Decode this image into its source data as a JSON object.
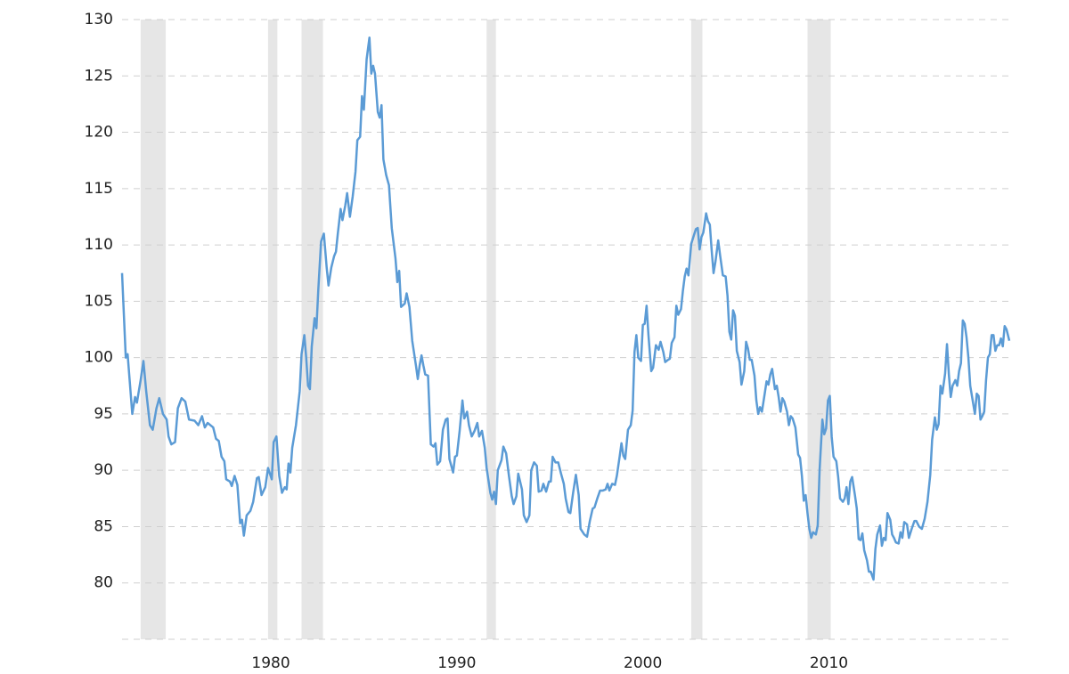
{
  "chart_data": {
    "type": "line",
    "color": "#5b9bd5",
    "grid": true,
    "xlim": [
      1972,
      2019.7
    ],
    "xticks": [
      1980,
      1990,
      2000,
      2010
    ],
    "ylim": [
      75,
      130
    ],
    "yticks": [
      80,
      85,
      90,
      95,
      100,
      105,
      110,
      115,
      120,
      125,
      130
    ],
    "recessions": [
      [
        1973.0,
        1974.35
      ],
      [
        1979.85,
        1980.35
      ],
      [
        1981.65,
        1982.8
      ],
      [
        1991.6,
        1992.1
      ],
      [
        2002.6,
        2003.2
      ],
      [
        2008.85,
        2010.1
      ]
    ],
    "recession_color": "#e6e6e6",
    "x": [
      1972.0,
      1972.2,
      1972.3,
      1972.55,
      1972.7,
      1972.8,
      1973.0,
      1973.15,
      1973.3,
      1973.5,
      1973.65,
      1973.85,
      1974.0,
      1974.2,
      1974.4,
      1974.5,
      1974.65,
      1974.85,
      1975.0,
      1975.2,
      1975.4,
      1975.6,
      1975.9,
      1976.1,
      1976.3,
      1976.45,
      1976.6,
      1976.9,
      1977.05,
      1977.2,
      1977.35,
      1977.5,
      1977.6,
      1977.8,
      1977.9,
      1978.05,
      1978.2,
      1978.35,
      1978.45,
      1978.55,
      1978.7,
      1978.9,
      1979.05,
      1979.25,
      1979.35,
      1979.5,
      1979.7,
      1979.85,
      1980.05,
      1980.15,
      1980.3,
      1980.45,
      1980.6,
      1980.75,
      1980.85,
      1980.95,
      1981.05,
      1981.15,
      1981.35,
      1981.55,
      1981.65,
      1981.8,
      1981.9,
      1982.0,
      1982.1,
      1982.2,
      1982.35,
      1982.45,
      1982.55,
      1982.7,
      1982.85,
      1983.0,
      1983.1,
      1983.25,
      1983.4,
      1983.5,
      1983.6,
      1983.75,
      1983.85,
      1984.0,
      1984.1,
      1984.25,
      1984.4,
      1984.55,
      1984.65,
      1984.8,
      1984.9,
      1985.0,
      1985.15,
      1985.3,
      1985.4,
      1985.5,
      1985.6,
      1985.75,
      1985.85,
      1985.95,
      1986.05,
      1986.2,
      1986.35,
      1986.5,
      1986.7,
      1986.8,
      1986.9,
      1987.0,
      1987.2,
      1987.3,
      1987.45,
      1987.6,
      1987.8,
      1987.9,
      1988.0,
      1988.1,
      1988.2,
      1988.3,
      1988.45,
      1988.6,
      1988.75,
      1988.85,
      1988.95,
      1989.1,
      1989.25,
      1989.4,
      1989.5,
      1989.6,
      1989.8,
      1989.9,
      1990.0,
      1990.15,
      1990.3,
      1990.4,
      1990.55,
      1990.65,
      1990.8,
      1990.95,
      1991.1,
      1991.2,
      1991.35,
      1991.5,
      1991.6,
      1991.8,
      1991.9,
      1992.0,
      1992.1,
      1992.2,
      1992.4,
      1992.5,
      1992.65,
      1992.8,
      1992.95,
      1993.05,
      1993.2,
      1993.3,
      1993.5,
      1993.6,
      1993.75,
      1993.9,
      1994.0,
      1994.15,
      1994.3,
      1994.4,
      1994.55,
      1994.65,
      1994.8,
      1994.95,
      1995.05,
      1995.15,
      1995.3,
      1995.45,
      1995.6,
      1995.75,
      1995.85,
      1996.0,
      1996.1,
      1996.25,
      1996.4,
      1996.55,
      1996.65,
      1996.85,
      1997.0,
      1997.15,
      1997.3,
      1997.4,
      1997.55,
      1997.7,
      1997.85,
      1998.0,
      1998.1,
      1998.2,
      1998.35,
      1998.5,
      1998.6,
      1998.75,
      1998.85,
      1998.95,
      1999.05,
      1999.2,
      1999.35,
      1999.45,
      1999.55,
      1999.65,
      1999.75,
      1999.9,
      2000.0,
      2000.1,
      2000.2,
      2000.3,
      2000.45,
      2000.55,
      2000.7,
      2000.85,
      2000.95,
      2001.1,
      2001.2,
      2001.35,
      2001.45,
      2001.55,
      2001.7,
      2001.8,
      2001.9,
      2002.05,
      2002.15,
      2002.25,
      2002.35,
      2002.45,
      2002.6,
      2002.75,
      2002.85,
      2002.95,
      2003.05,
      2003.15,
      2003.25,
      2003.4,
      2003.5,
      2003.6,
      2003.7,
      2003.8,
      2003.9,
      2004.05,
      2004.15,
      2004.3,
      2004.45,
      2004.55,
      2004.65,
      2004.75,
      2004.85,
      2004.95,
      2005.05,
      2005.2,
      2005.3,
      2005.45,
      2005.55,
      2005.65,
      2005.75,
      2005.85,
      2006.0,
      2006.1,
      2006.2,
      2006.3,
      2006.4,
      2006.55,
      2006.65,
      2006.75,
      2006.85,
      2006.95,
      2007.1,
      2007.2,
      2007.3,
      2007.4,
      2007.5,
      2007.6,
      2007.75,
      2007.85,
      2007.95,
      2008.05,
      2008.2,
      2008.35,
      2008.45,
      2008.55,
      2008.65,
      2008.75,
      2008.85,
      2008.95,
      2009.05,
      2009.15,
      2009.3,
      2009.4,
      2009.5,
      2009.65,
      2009.75,
      2009.85,
      2009.95,
      2010.05,
      2010.15,
      2010.25,
      2010.4,
      2010.5,
      2010.6,
      2010.75,
      2010.85,
      2010.95,
      2011.05,
      2011.15,
      2011.25,
      2011.4,
      2011.5,
      2011.6,
      2011.7,
      2011.8,
      2011.9,
      2012.05,
      2012.15,
      2012.25,
      2012.4,
      2012.5,
      2012.6,
      2012.75,
      2012.85,
      2012.95,
      2013.05,
      2013.15,
      2013.3,
      2013.4,
      2013.5,
      2013.6,
      2013.75,
      2013.85,
      2013.95,
      2014.05,
      2014.2,
      2014.3,
      2014.45,
      2014.6,
      2014.7,
      2014.85,
      2015.0,
      2015.15,
      2015.3,
      2015.45,
      2015.55,
      2015.7,
      2015.8,
      2015.9,
      2016.0,
      2016.1,
      2016.25,
      2016.35,
      2016.45,
      2016.55,
      2016.65,
      2016.8,
      2016.9,
      2017.0,
      2017.1,
      2017.2,
      2017.3,
      2017.4,
      2017.5,
      2017.6,
      2017.7,
      2017.85,
      2017.95,
      2018.05,
      2018.15,
      2018.25,
      2018.35,
      2018.45,
      2018.55,
      2018.65,
      2018.75,
      2018.85,
      2018.95,
      2019.05,
      2019.15,
      2019.25,
      2019.35,
      2019.45,
      2019.55,
      2019.7
    ],
    "values": [
      107.5,
      100,
      100.3,
      95,
      96.5,
      96,
      98,
      99.7,
      97,
      94,
      93.6,
      95.5,
      96.4,
      95,
      94.5,
      93,
      92.3,
      92.5,
      95.5,
      96.4,
      96.1,
      94.5,
      94.4,
      94,
      94.8,
      93.8,
      94.2,
      93.8,
      92.8,
      92.6,
      91.2,
      90.8,
      89.2,
      89,
      88.6,
      89.5,
      88.7,
      85.3,
      85.6,
      84.2,
      86,
      86.4,
      87.2,
      89.3,
      89.4,
      87.8,
      88.5,
      90.2,
      89.2,
      92.5,
      93,
      89.5,
      88,
      88.5,
      88.3,
      90.6,
      89.8,
      92,
      94,
      97,
      100.3,
      102,
      100,
      97.5,
      97.2,
      101,
      103.5,
      102.6,
      106,
      110.3,
      111,
      108,
      106.4,
      108,
      109,
      109.4,
      111,
      113.2,
      112.2,
      113.5,
      114.6,
      112.5,
      114.3,
      116.5,
      119.3,
      119.6,
      123.2,
      122,
      126.5,
      128.4,
      125.2,
      125.9,
      125.2,
      121.8,
      121.3,
      122.4,
      117.6,
      116.2,
      115.3,
      111.5,
      108.8,
      106.7,
      107.7,
      104.5,
      104.8,
      105.7,
      104.5,
      101.5,
      99.3,
      98.1,
      99.3,
      100.2,
      99.3,
      98.5,
      98.4,
      92.3,
      92.1,
      92.4,
      90.5,
      90.8,
      93.6,
      94.5,
      94.6,
      91,
      89.8,
      91.2,
      91.3,
      93.5,
      96.2,
      94.6,
      95.2,
      94,
      93,
      93.5,
      94.2,
      93,
      93.5,
      92,
      90.2,
      88,
      87.4,
      88.1,
      87,
      90,
      90.9,
      92.1,
      91.5,
      89.5,
      87.7,
      87,
      87.7,
      89.7,
      88.3,
      86,
      85.4,
      86,
      90,
      90.7,
      90.4,
      88.1,
      88.2,
      88.8,
      88.1,
      89,
      89,
      91.2,
      90.7,
      90.7,
      89.7,
      88.8,
      87.5,
      86.3,
      86.2,
      88,
      89.6,
      87.8,
      84.8,
      84.3,
      84.1,
      85.5,
      86.6,
      86.7,
      87.5,
      88.2,
      88.2,
      88.3,
      88.8,
      88.2,
      88.8,
      88.7,
      89.5,
      91.2,
      92.4,
      91.3,
      91,
      93.6,
      94,
      95.3,
      100.5,
      102,
      100,
      99.7,
      102.9,
      103,
      104.6,
      102,
      98.8,
      99.1,
      101.1,
      100.7,
      101.4,
      100.5,
      99.6,
      99.8,
      99.9,
      101.3,
      101.8,
      104.6,
      103.8,
      104.3,
      105.9,
      107.2,
      107.9,
      107.3,
      110.1,
      110.9,
      111.4,
      111.5,
      109.6,
      110.7,
      111.1,
      112.8,
      112.1,
      111.8,
      109.5,
      107.5,
      108.5,
      110.4,
      109.1,
      107.3,
      107.2,
      105.5,
      102.3,
      101.6,
      104.2,
      103.7,
      100.6,
      99.6,
      97.6,
      98.8,
      101.4,
      100.8,
      99.8,
      99.8,
      98.4,
      96.2,
      95,
      95.6,
      95.2,
      96.8,
      97.9,
      97.6,
      98.5,
      99,
      97.2,
      97.5,
      96.5,
      95.2,
      96.4,
      96.1,
      95.2,
      94,
      94.8,
      94.6,
      93.8,
      91.4,
      91.1,
      89.5,
      87.3,
      87.8,
      86.2,
      84.8,
      84,
      84.5,
      84.3,
      85.1,
      90,
      94.5,
      93.2,
      93.7,
      96.2,
      96.6,
      93,
      91.2,
      90.8,
      89.4,
      87.5,
      87.2,
      87.5,
      88.5,
      87,
      89,
      89.4,
      87.8,
      86.6,
      83.9,
      83.8,
      84.4,
      82.9,
      82,
      81,
      81,
      80.3,
      83,
      84.3,
      85.1,
      83.3,
      84,
      83.8,
      86.2,
      85.6,
      84.3,
      84,
      83.6,
      83.5,
      84.5,
      84,
      85.4,
      85.2,
      84,
      84.8,
      85.5,
      85.5,
      85,
      84.8,
      85.7,
      87.2,
      89.6,
      92.7,
      94.7,
      93.6,
      94.1,
      97.5,
      96.8,
      98.6,
      101.2,
      98.5,
      96.5,
      97.5,
      98,
      97.5,
      98.8,
      99.5,
      103.3,
      103,
      101.8,
      100,
      97.5,
      96.5,
      95,
      96.8,
      96.6,
      94.5,
      94.8,
      95.2,
      98,
      100,
      100.3,
      102,
      102,
      100.6,
      101.1,
      101.1,
      101.7,
      101,
      102.8,
      102.5,
      101.5
    ]
  }
}
